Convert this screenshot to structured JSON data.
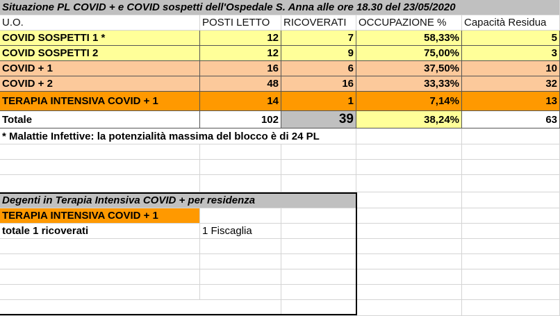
{
  "title": "Situazione PL COVID + e COVID sospetti dell'Ospedale S. Anna alle ore 18.30 del 23/05/2020",
  "headers": [
    "U.O.",
    "POSTI LETTO",
    "RICOVERATI",
    "OCCUPAZIONE %",
    "Capacità Residua"
  ],
  "rows": [
    {
      "uo": "COVID SOSPETTI 1 *",
      "posti": "12",
      "ricoverati": "7",
      "occupazione": "58,33%",
      "residua": "5"
    },
    {
      "uo": "COVID SOSPETTI 2",
      "posti": "12",
      "ricoverati": "9",
      "occupazione": "75,00%",
      "residua": "3"
    },
    {
      "uo": "COVID + 1",
      "posti": "16",
      "ricoverati": "6",
      "occupazione": "37,50%",
      "residua": "10"
    },
    {
      "uo": "COVID + 2",
      "posti": "48",
      "ricoverati": "16",
      "occupazione": "33,33%",
      "residua": "32"
    },
    {
      "uo": "TERAPIA INTENSIVA COVID + 1",
      "posti": "14",
      "ricoverati": "1",
      "occupazione": "7,14%",
      "residua": "13"
    }
  ],
  "totals": {
    "label": "Totale",
    "posti": "102",
    "ricoverati": "39",
    "occupazione": "38,24%",
    "residua": "63"
  },
  "note": "*   Malattie Infettive: la potenzialità massima del blocco è di 24 PL",
  "residence": {
    "title": "Degenti in Terapia Intensiva COVID + per residenza",
    "unit": "TERAPIA INTENSIVA COVID + 1",
    "total_label": "totale 1 ricoverati",
    "entry": "1 Fiscaglia"
  },
  "colors": {
    "suspect": "#ffff99",
    "covid": "#fcc99b",
    "intensive": "#ff9900",
    "header": "#c0c0c0"
  }
}
